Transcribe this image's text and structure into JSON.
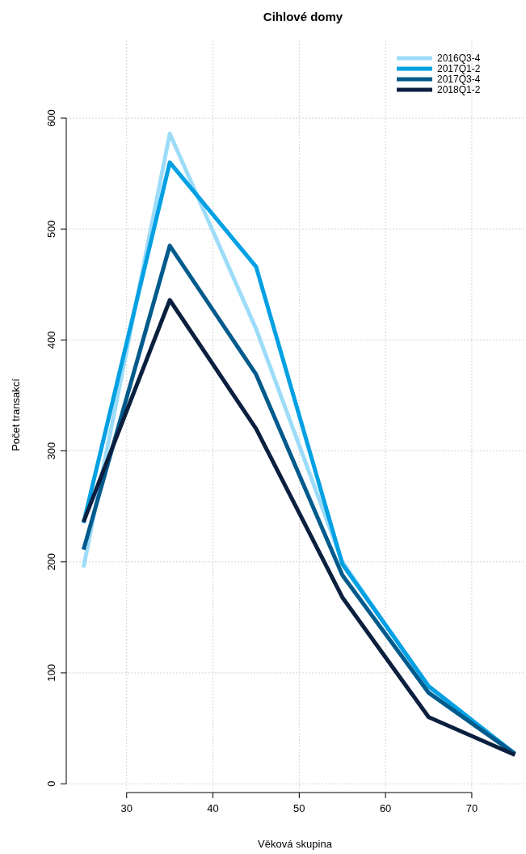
{
  "chart_data": {
    "type": "line",
    "title": "Cihlové domy",
    "xlabel": "Věková skupina",
    "ylabel": "Počet transakcí",
    "x": [
      25,
      35,
      45,
      55,
      65,
      75
    ],
    "series": [
      {
        "name": "2016Q3-4",
        "color": "#9ddcf9",
        "values": [
          195,
          586,
          410,
          200,
          87,
          27
        ]
      },
      {
        "name": "2017Q1-2",
        "color": "#00a0e3",
        "values": [
          235,
          560,
          466,
          198,
          88,
          27
        ]
      },
      {
        "name": "2017Q3-4",
        "color": "#005b8c",
        "values": [
          211,
          485,
          369,
          188,
          82,
          27
        ]
      },
      {
        "name": "2018Q1-2",
        "color": "#0b1f3f",
        "values": [
          236,
          436,
          320,
          168,
          60,
          26
        ]
      }
    ],
    "xlim": [
      23,
      76
    ],
    "ylim": [
      -5,
      670
    ],
    "xticks": [
      30,
      40,
      50,
      60,
      70
    ],
    "yticks": [
      0,
      100,
      200,
      300,
      400,
      500,
      600
    ],
    "grid": true,
    "legend": "top right",
    "marker": "none",
    "line_style": "solid"
  }
}
